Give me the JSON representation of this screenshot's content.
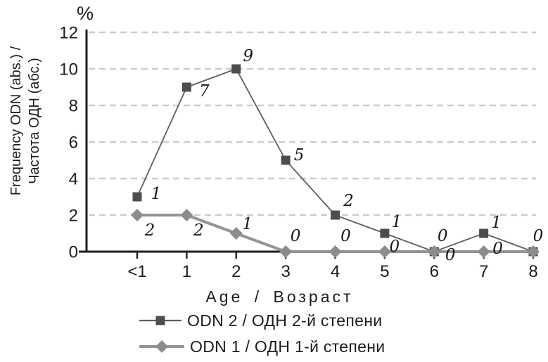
{
  "chart_data": {
    "type": "line",
    "title": "",
    "unit_label": "%",
    "ylabel_lines": [
      "Frequency ODN (abs.) /",
      "Частота ОДН (абс.)"
    ],
    "xlabel": "Age / Возраст",
    "categories": [
      "<1",
      "1",
      "2",
      "3",
      "4",
      "5",
      "6",
      "7",
      "8"
    ],
    "yticks": [
      0,
      2,
      4,
      6,
      8,
      10,
      12
    ],
    "ylim": [
      0,
      12
    ],
    "grid": "horizontal dashed",
    "legend_position": "bottom-left",
    "series": [
      {
        "name": "ODN 2 / ОДН 2-й степени",
        "marker": "square",
        "marker_color": "#4d4d4d",
        "line_color": "#5e5e5e",
        "line_width": 1.8,
        "values": [
          3,
          9,
          10,
          5,
          2,
          1,
          0,
          1,
          0
        ],
        "point_labels": [
          "1",
          "7",
          "9",
          "5",
          "2",
          "1",
          "0",
          "1",
          "0"
        ],
        "label_offsets": [
          [
            27,
            -4
          ],
          [
            25,
            6
          ],
          [
            17,
            -18
          ],
          [
            19,
            -7
          ],
          [
            19,
            -20
          ],
          [
            17,
            -16
          ],
          [
            12,
            -22
          ],
          [
            18,
            -15
          ],
          [
            7,
            -22
          ]
        ]
      },
      {
        "name": "ODN 1 / ОДН 1-й степени",
        "marker": "diamond",
        "marker_color": "#8c8c8c",
        "line_color": "#949494",
        "line_width": 4,
        "values": [
          2,
          2,
          1,
          0,
          0,
          0,
          0,
          0,
          0
        ],
        "point_labels": [
          "2",
          "2",
          "1",
          "0",
          "0",
          "0",
          "0",
          "0",
          ""
        ],
        "label_offsets": [
          [
            18,
            22
          ],
          [
            17,
            22
          ],
          [
            16,
            -13
          ],
          [
            14,
            -22
          ],
          [
            15,
            -22
          ],
          [
            14,
            -7
          ],
          [
            23,
            5
          ],
          [
            20,
            -4
          ],
          [
            0,
            0
          ]
        ]
      }
    ],
    "colors": {
      "axis": "#1f1f1f",
      "grid": "#cccccc",
      "tick_text": "#1c1c1c",
      "point_label_text": "#17171f",
      "background": "#ffffff"
    }
  }
}
